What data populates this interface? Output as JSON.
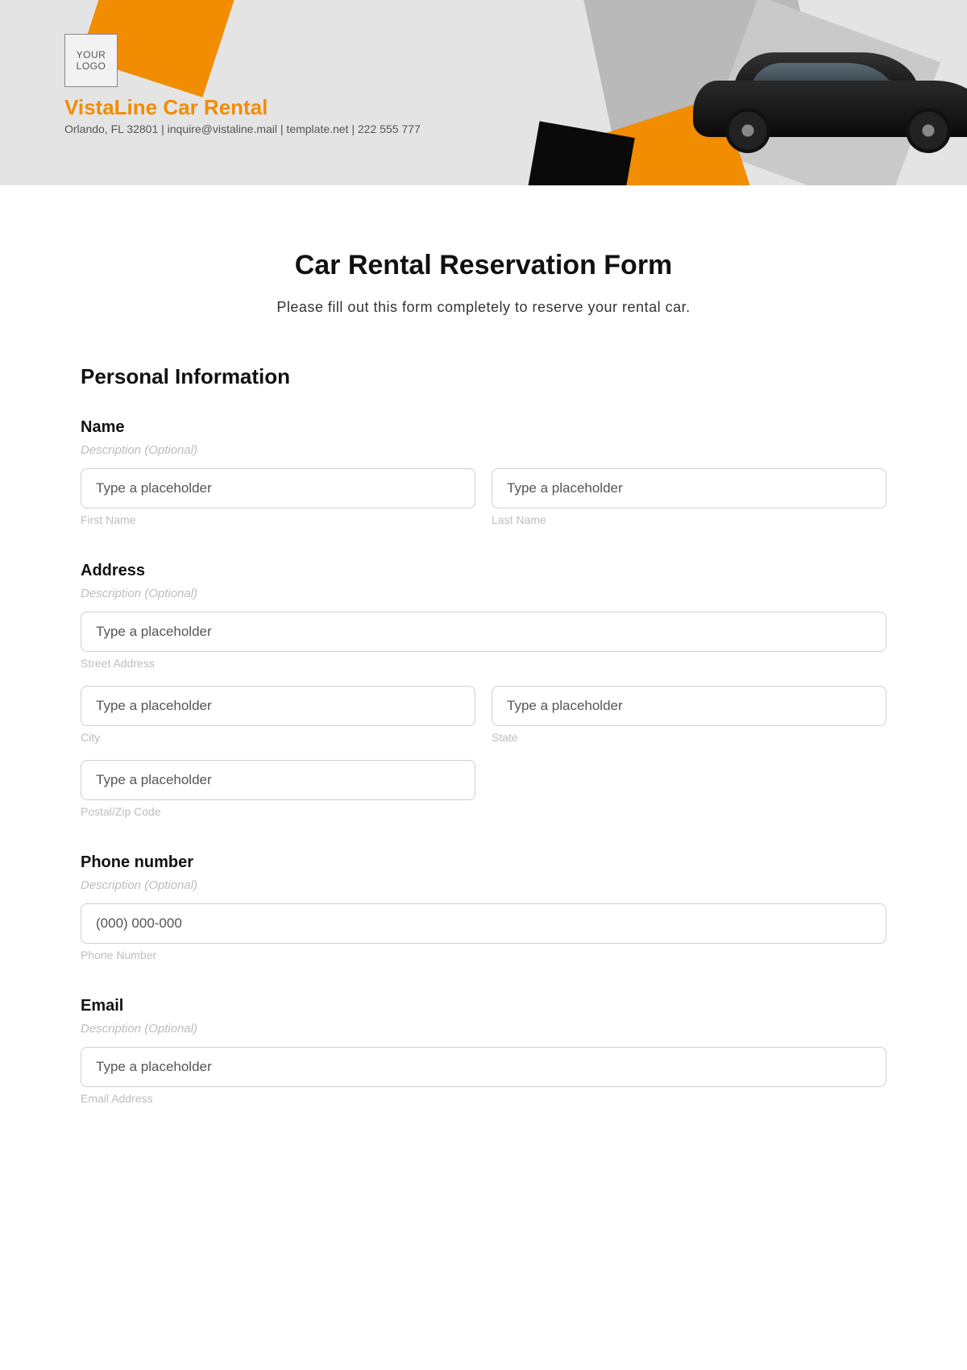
{
  "colors": {
    "accent": "#f28c00",
    "header_bg": "#e4e4e4",
    "text_primary": "#111111",
    "text_muted": "#bdbdbd",
    "input_border": "#cfcfcf"
  },
  "header": {
    "logo_text": "YOUR\nLOGO",
    "company_name": "VistaLine Car Rental",
    "company_info": "Orlando, FL 32801 | inquire@vistaline.mail | template.net | 222 555 777"
  },
  "form": {
    "title": "Car Rental Reservation Form",
    "subtitle": "Please fill out this form completely to reserve your rental car.",
    "section_personal": "Personal Information",
    "desc_optional": "Description (Optional)",
    "placeholder_generic": "Type a placeholder",
    "name": {
      "label": "Name",
      "first_sub": "First Name",
      "last_sub": "Last Name"
    },
    "address": {
      "label": "Address",
      "street_sub": "Street Address",
      "city_sub": "City",
      "state_sub": "State",
      "postal_sub": "Postal/Zip Code"
    },
    "phone": {
      "label": "Phone number",
      "placeholder": "(000) 000-000",
      "sub": "Phone Number"
    },
    "email": {
      "label": "Email",
      "sub": "Email Address"
    }
  }
}
